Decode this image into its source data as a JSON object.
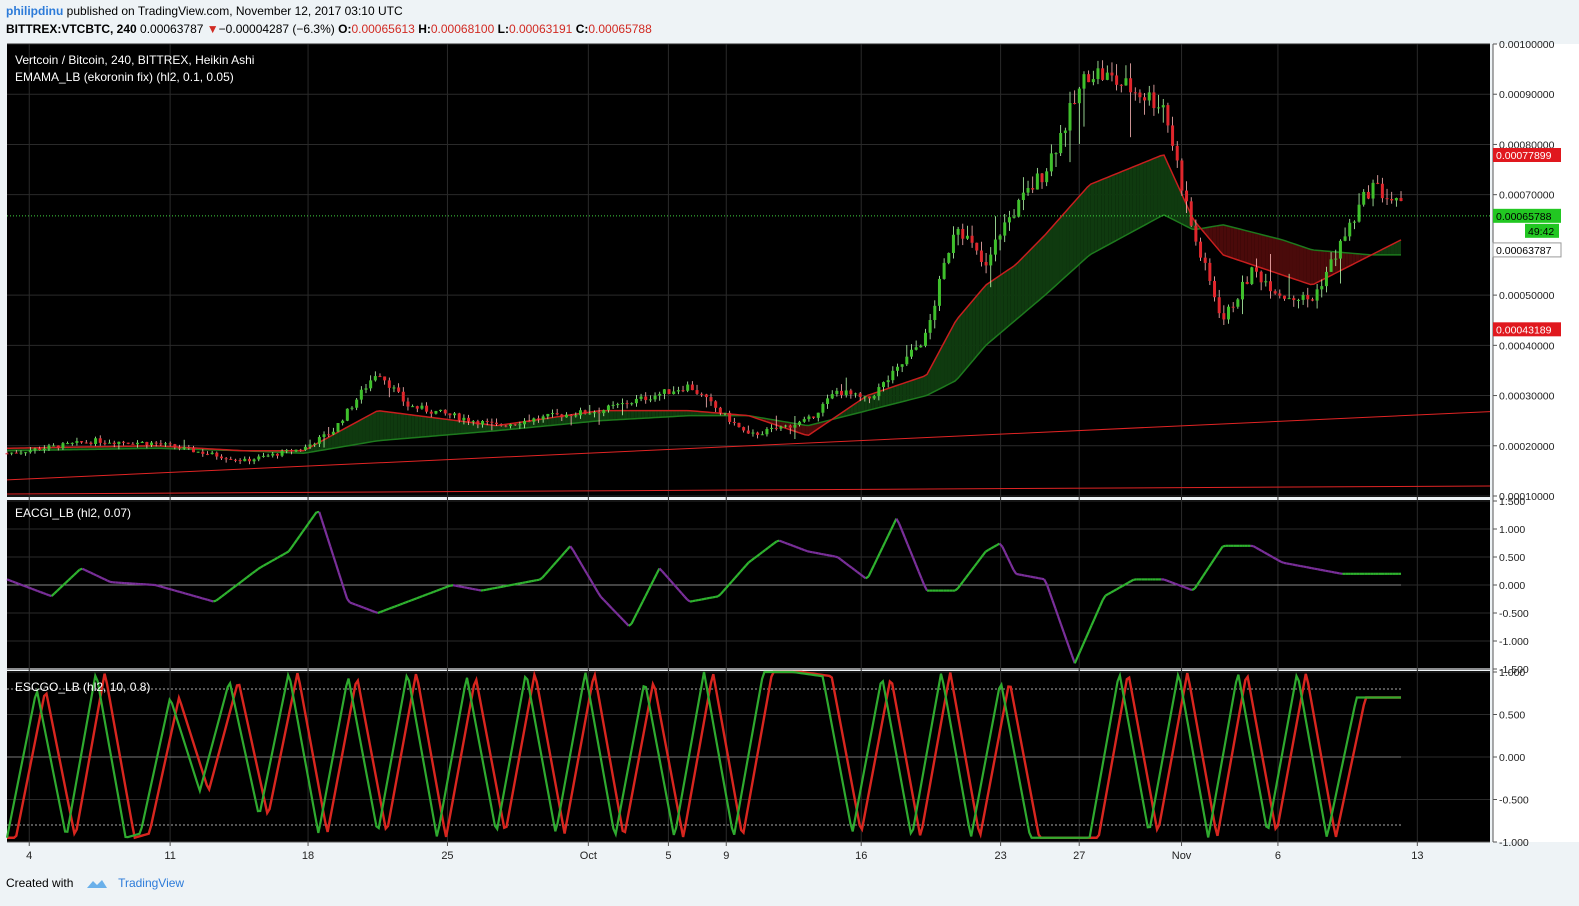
{
  "header": {
    "author": "philipdinu",
    "published": "published on TradingView.com, November 12, 2017 03:10 UTC",
    "symbol": "BITTREX:VTCBTC, 240",
    "last": "0.00063787",
    "change_arrow": "▼",
    "change": "−0.00004287 (−6.3%)",
    "o_label": "O:",
    "o": "0.00065613",
    "h_label": "H:",
    "h": "0.00068100",
    "l_label": "L:",
    "l": "0.00063191",
    "c_label": "C:",
    "c": "0.00065788"
  },
  "colors": {
    "up": "#3fc02c",
    "down": "#e0262c",
    "panel_bg": "#000000",
    "grid": "#2a2a2a",
    "trend": "#e02424",
    "fill_green": "#0f3a0f",
    "fill_red": "#4a0a0a",
    "last_tag": "#22c722",
    "high_tag": "#e0181e"
  },
  "footer": {
    "created": "Created with",
    "brand": "TradingView",
    "logo_icon": "tradingview-cloud-icon"
  },
  "chart_data": [
    {
      "type": "candlestick",
      "title": "Vertcoin / Bitcoin, 240, BITTREX, Heikin Ashi",
      "indicator": "EMAMA_LB (ekoronin fix) (hl2, 0.1, 0.05)",
      "ylim": [
        0.0001,
        0.001
      ],
      "ticks": [
        "0.00100000",
        "0.00090000",
        "0.00080000",
        "0.00070000",
        "0.00050000",
        "0.00040000",
        "0.00030000",
        "0.00020000",
        "0.00010000"
      ],
      "tick_values": [
        0.001,
        0.0009,
        0.0008,
        0.0007,
        0.0005,
        0.0004,
        0.0003,
        0.0002,
        0.0001
      ],
      "price_tags": [
        {
          "label": "0.00077899",
          "value": 0.00077899,
          "kind": "high"
        },
        {
          "label": "0.00065788",
          "value": 0.00065788,
          "kind": "last"
        },
        {
          "label": "49:42",
          "value": 0.000628,
          "kind": "timer"
        },
        {
          "label": "0.00063787",
          "value": 0.00059,
          "kind": "plain"
        },
        {
          "label": "0.00043189",
          "value": 0.00043189,
          "kind": "high"
        }
      ],
      "current_price": 0.00065788,
      "close_anchors_x": [
        0,
        6,
        10,
        16,
        20,
        22,
        25,
        27,
        33,
        37,
        40,
        46,
        50,
        54,
        56,
        58,
        60,
        62,
        64,
        66,
        67,
        68,
        70,
        73,
        78,
        80,
        82,
        84,
        86,
        88,
        92,
        96,
        100,
        104
      ],
      "close_anchors_y": [
        0.000185,
        0.00021,
        0.000205,
        0.00017,
        0.000195,
        0.00023,
        0.00035,
        0.00028,
        0.00024,
        0.00026,
        0.00027,
        0.00032,
        0.00022,
        0.00025,
        0.00031,
        0.00029,
        0.00035,
        0.00042,
        0.00065,
        0.00055,
        0.00063,
        0.00067,
        0.00075,
        0.00095,
        0.00088,
        0.00062,
        0.00045,
        0.00055,
        0.0005,
        0.00049,
        0.00072,
        0.00063,
        0.00066,
        0.00066
      ],
      "ma_fast_x": [
        0,
        10,
        16,
        20,
        25,
        33,
        40,
        46,
        50,
        54,
        58,
        62,
        64,
        66,
        68,
        70,
        73,
        78,
        80,
        82,
        86,
        88,
        92,
        94
      ],
      "ma_fast_y": [
        0.000195,
        0.0002,
        0.00019,
        0.00019,
        0.00027,
        0.00024,
        0.00027,
        0.00027,
        0.00026,
        0.00022,
        0.0003,
        0.00034,
        0.00045,
        0.00052,
        0.00056,
        0.00062,
        0.00072,
        0.00078,
        0.00065,
        0.00058,
        0.00054,
        0.00052,
        0.00058,
        0.00061
      ],
      "ma_slow_x": [
        0,
        10,
        16,
        20,
        25,
        33,
        40,
        46,
        50,
        54,
        58,
        62,
        64,
        66,
        70,
        73,
        78,
        80,
        82,
        86,
        88,
        92,
        94
      ],
      "ma_slow_y": [
        0.00019,
        0.000195,
        0.00019,
        0.000185,
        0.00021,
        0.00023,
        0.00025,
        0.00026,
        0.00026,
        0.00024,
        0.00027,
        0.0003,
        0.00033,
        0.0004,
        0.0005,
        0.00058,
        0.00066,
        0.00063,
        0.00064,
        0.00061,
        0.00059,
        0.00058,
        0.00058
      ],
      "trendlines": [
        {
          "x": [
            0,
            100
          ],
          "y": [
            0.000132,
            0.000268
          ]
        },
        {
          "x": [
            0,
            100
          ],
          "y": [
            0.000104,
            0.00012
          ]
        }
      ]
    },
    {
      "type": "line",
      "title": "EACGI_LB (hl2, 0.07)",
      "ylim": [
        -1.5,
        1.5
      ],
      "ticks": [
        "1.500",
        "1.000",
        "0.500",
        "0.000",
        "-0.500",
        "-1.000",
        "-1.500"
      ],
      "tick_values": [
        1.5,
        1.0,
        0.5,
        0.0,
        -0.5,
        -1.0,
        -1.5
      ],
      "x": [
        0,
        3,
        5,
        7,
        10,
        14,
        17,
        19,
        21,
        23,
        25,
        27,
        28,
        30,
        32,
        34,
        36,
        38,
        40,
        42,
        44,
        46,
        48,
        50,
        52,
        54,
        56,
        58,
        60,
        62,
        64,
        66,
        67,
        68,
        70,
        72,
        74,
        76,
        78,
        80,
        82,
        84,
        86,
        88,
        90,
        92,
        94
      ],
      "values": [
        0.1,
        -0.2,
        0.3,
        0.05,
        0.0,
        -0.3,
        0.3,
        0.6,
        1.35,
        -0.3,
        -0.5,
        -0.3,
        -0.2,
        0.0,
        -0.1,
        0.0,
        0.1,
        0.7,
        -0.2,
        -0.75,
        0.3,
        -0.3,
        -0.2,
        0.4,
        0.8,
        0.6,
        0.5,
        0.1,
        1.2,
        -0.1,
        -0.1,
        0.6,
        0.75,
        0.2,
        0.1,
        -1.4,
        -0.2,
        0.1,
        0.1,
        -0.1,
        0.7,
        0.7,
        0.4,
        0.3,
        0.2,
        0.2,
        0.2
      ]
    },
    {
      "type": "line",
      "title": "ESCGO_LB (hl2, 10, 0.8)",
      "ylim": [
        -1.0,
        1.0
      ],
      "ticks": [
        "1.000",
        "0.500",
        "0.000",
        "-0.500",
        "-1.000"
      ],
      "tick_values": [
        1.0,
        0.5,
        0.0,
        -0.5,
        -1.0
      ],
      "levels": [
        0.8,
        -0.8
      ],
      "x": [
        0,
        2,
        4,
        6,
        8,
        9,
        11,
        13,
        15,
        17,
        19,
        21,
        23,
        25,
        27,
        29,
        31,
        33,
        35,
        37,
        39,
        41,
        43,
        45,
        47,
        49,
        51,
        53,
        55,
        57,
        59,
        61,
        63,
        65,
        67,
        69,
        71,
        73,
        75,
        77,
        79,
        81,
        83,
        85,
        87,
        89,
        91,
        93,
        95
      ],
      "values": [
        -0.95,
        0.8,
        -0.95,
        1.0,
        -0.95,
        -0.9,
        0.7,
        -0.4,
        0.9,
        -0.7,
        1.0,
        -0.9,
        0.95,
        -0.9,
        1.0,
        -0.95,
        0.95,
        -0.9,
        1.0,
        -0.9,
        1.0,
        -0.95,
        0.9,
        -0.95,
        1.0,
        -0.95,
        1.0,
        1.0,
        0.95,
        -0.9,
        0.95,
        -0.95,
        1.0,
        -0.95,
        0.9,
        -0.95,
        -0.95,
        -0.95,
        1.0,
        -0.9,
        1.0,
        -0.95,
        1.0,
        -0.9,
        1.0,
        -0.95,
        0.7,
        0.7,
        0.7
      ]
    }
  ],
  "x_axis": {
    "labels": [
      "4",
      "11",
      "18",
      "25",
      "Oct",
      "5",
      "9",
      "16",
      "23",
      "27",
      "Nov",
      "6",
      "13"
    ],
    "positions": [
      1.5,
      11,
      20.3,
      29.7,
      39.2,
      44.6,
      48.5,
      57.6,
      67,
      72.3,
      79.2,
      85.7,
      95.1
    ]
  }
}
